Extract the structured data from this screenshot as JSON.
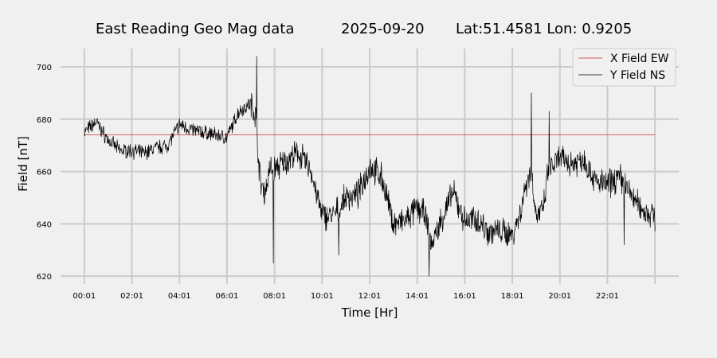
{
  "chart_data": {
    "type": "line",
    "title": {
      "station": "East Reading Geo Mag data",
      "date": "2025-09-20",
      "location": "Lat:51.4581  Lon: 0.9205"
    },
    "xlabel": "Time  [Hr]",
    "ylabel": "Field  [nT]",
    "x_unit": "hours",
    "x_ticks": [
      0,
      2,
      4,
      6,
      8,
      10,
      12,
      14,
      16,
      18,
      20,
      22
    ],
    "x_tick_labels": [
      "00:01",
      "02:01",
      "04:01",
      "06:01",
      "08:01",
      "10:01",
      "12:01",
      "14:01",
      "16:01",
      "18:01",
      "20:01",
      "22:01"
    ],
    "xlim": [
      -1.0,
      25.0
    ],
    "ylim": [
      617,
      707
    ],
    "y_ticks": [
      620,
      640,
      660,
      680,
      700
    ],
    "grid": true,
    "legend_position": "top-right",
    "series": [
      {
        "name": "X Field EW",
        "color": "#d03030",
        "x": [
          0,
          24
        ],
        "y": [
          674,
          674
        ]
      },
      {
        "name": "Y Field NS",
        "color": "#000000",
        "x": [
          0,
          0.5,
          0.7,
          1,
          1.5,
          2,
          2.5,
          3,
          3.5,
          4,
          4.5,
          5,
          5.5,
          6,
          6.5,
          7,
          7.2,
          7.4,
          7.6,
          7.8,
          8,
          8.5,
          9,
          9.5,
          10,
          10.5,
          11,
          11.5,
          12,
          12.5,
          13,
          13.5,
          14,
          14.3,
          14.6,
          15,
          15.5,
          16,
          16.5,
          17,
          17.5,
          18,
          18.3,
          18.6,
          18.8,
          19,
          19.3,
          19.5,
          20,
          20.5,
          21,
          21.5,
          22,
          22.5,
          23,
          23.5,
          24
        ],
        "y": [
          675,
          679,
          676,
          672,
          668,
          668,
          667,
          669,
          670,
          678,
          676,
          675,
          674,
          673,
          683,
          686,
          682,
          656,
          652,
          661,
          661,
          664,
          667,
          661,
          643,
          643,
          650,
          651,
          662,
          658,
          640,
          641,
          646,
          644,
          632,
          641,
          652,
          641,
          642,
          637,
          637,
          636,
          643,
          656,
          661,
          643,
          645,
          660,
          665,
          663,
          665,
          656,
          655,
          658,
          651,
          645,
          643
        ]
      }
    ],
    "spikes": [
      {
        "x": 7.25,
        "y": 704
      },
      {
        "x": 7.95,
        "y": 625
      },
      {
        "x": 10.7,
        "y": 628
      },
      {
        "x": 14.5,
        "y": 620
      },
      {
        "x": 18.8,
        "y": 690
      },
      {
        "x": 19.55,
        "y": 683
      },
      {
        "x": 22.7,
        "y": 632
      }
    ]
  }
}
